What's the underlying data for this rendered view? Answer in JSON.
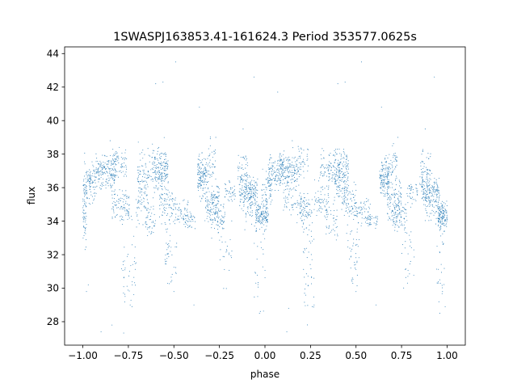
{
  "chart_data": {
    "type": "scatter",
    "title": "1SWASPJ163853.41-161624.3 Period 353577.0625s",
    "xlabel": "phase",
    "ylabel": "flux",
    "xlim": [
      -1.1,
      1.1
    ],
    "ylim": [
      26.6,
      44.4
    ],
    "xticks": [
      -1.0,
      -0.75,
      -0.5,
      -0.25,
      0.0,
      0.25,
      0.5,
      0.75,
      1.0
    ],
    "xtick_labels": [
      "−1.00",
      "−0.75",
      "−0.50",
      "−0.25",
      "0.00",
      "0.25",
      "0.50",
      "0.75",
      "1.00"
    ],
    "yticks": [
      28,
      30,
      32,
      34,
      36,
      38,
      40,
      42,
      44
    ],
    "ytick_labels": [
      "28",
      "30",
      "32",
      "34",
      "36",
      "38",
      "40",
      "42",
      "44"
    ],
    "grid": false,
    "marker_color": "#1f77b4",
    "series": [
      {
        "clusters": [
          {
            "x": [
              -1.0,
              -0.98
            ],
            "y": [
              34.8,
              1.2
            ],
            "n": 70
          },
          {
            "x": [
              -0.985,
              -0.93
            ],
            "y": [
              36.2,
              0.6
            ],
            "n": 90
          },
          {
            "x": [
              -0.93,
              -0.82
            ],
            "y": [
              36.9,
              0.55
            ],
            "n": 170
          },
          {
            "x": [
              -0.84,
              -0.76
            ],
            "y": [
              37.4,
              0.5
            ],
            "n": 70
          },
          {
            "x": [
              -0.84,
              -0.74
            ],
            "y": [
              34.9,
              0.45
            ],
            "n": 90
          },
          {
            "x": [
              -0.79,
              -0.7
            ],
            "y": [
              31.2,
              1.4
            ],
            "n": 45
          },
          {
            "x": [
              -0.71,
              -0.64
            ],
            "y": [
              35.2,
              0.7
            ],
            "n": 60
          },
          {
            "x": [
              -0.7,
              -0.62
            ],
            "y": [
              37.1,
              0.55
            ],
            "n": 70
          },
          {
            "x": [
              -0.66,
              -0.6
            ],
            "y": [
              34.0,
              0.5
            ],
            "n": 40
          },
          {
            "x": [
              -0.62,
              -0.53
            ],
            "y": [
              37.0,
              0.65
            ],
            "n": 180
          },
          {
            "x": [
              -0.58,
              -0.5
            ],
            "y": [
              35.0,
              0.6
            ],
            "n": 80
          },
          {
            "x": [
              -0.55,
              -0.48
            ],
            "y": [
              32.0,
              0.9
            ],
            "n": 40
          },
          {
            "x": [
              -0.5,
              -0.42
            ],
            "y": [
              34.6,
              0.4
            ],
            "n": 50
          },
          {
            "x": [
              -0.45,
              -0.38
            ],
            "y": [
              34.0,
              0.3
            ],
            "n": 40
          },
          {
            "x": [
              -0.37,
              -0.32
            ],
            "y": [
              36.7,
              0.6
            ],
            "n": 130
          },
          {
            "x": [
              -0.33,
              -0.25
            ],
            "y": [
              35.2,
              0.7
            ],
            "n": 120
          },
          {
            "x": [
              -0.3,
              -0.22
            ],
            "y": [
              34.2,
              0.5
            ],
            "n": 70
          },
          {
            "x": [
              -0.32,
              -0.27
            ],
            "y": [
              37.6,
              0.5
            ],
            "n": 40
          },
          {
            "x": [
              -0.25,
              -0.18
            ],
            "y": [
              32.2,
              1.2
            ],
            "n": 25
          },
          {
            "x": [
              -0.22,
              -0.16
            ],
            "y": [
              35.7,
              0.35
            ],
            "n": 40
          },
          {
            "x": [
              -0.15,
              -0.09
            ],
            "y": [
              37.0,
              0.6
            ],
            "n": 60
          },
          {
            "x": [
              -0.14,
              -0.04
            ],
            "y": [
              35.8,
              0.45
            ],
            "n": 150
          },
          {
            "x": [
              -0.12,
              -0.05
            ],
            "y": [
              34.8,
              0.5
            ],
            "n": 45
          },
          {
            "x": [
              -0.05,
              0.02
            ],
            "y": [
              34.3,
              0.4
            ],
            "n": 140
          },
          {
            "x": [
              -0.02,
              0.04
            ],
            "y": [
              36.0,
              0.6
            ],
            "n": 60
          },
          {
            "x": [
              -0.06,
              0.01
            ],
            "y": [
              31.5,
              1.3
            ],
            "n": 25
          },
          {
            "x": [
              0.02,
              0.1
            ],
            "y": [
              36.9,
              0.5
            ],
            "n": 110
          },
          {
            "x": [
              0.08,
              0.18
            ],
            "y": [
              37.1,
              0.55
            ],
            "n": 150
          },
          {
            "x": [
              0.1,
              0.2
            ],
            "y": [
              35.3,
              0.6
            ],
            "n": 60
          },
          {
            "x": [
              0.19,
              0.26
            ],
            "y": [
              34.6,
              0.5
            ],
            "n": 80
          },
          {
            "x": [
              0.21,
              0.27
            ],
            "y": [
              31.3,
              1.4
            ],
            "n": 40
          },
          {
            "x": [
              0.18,
              0.24
            ],
            "y": [
              37.5,
              0.5
            ],
            "n": 40
          },
          {
            "x": [
              0.27,
              0.35
            ],
            "y": [
              35.3,
              0.6
            ],
            "n": 60
          },
          {
            "x": [
              0.3,
              0.38
            ],
            "y": [
              37.2,
              0.5
            ],
            "n": 70
          },
          {
            "x": [
              0.33,
              0.4
            ],
            "y": [
              34.0,
              0.5
            ],
            "n": 40
          },
          {
            "x": [
              0.38,
              0.46
            ],
            "y": [
              36.9,
              0.7
            ],
            "n": 180
          },
          {
            "x": [
              0.42,
              0.5
            ],
            "y": [
              35.0,
              0.6
            ],
            "n": 80
          },
          {
            "x": [
              0.45,
              0.52
            ],
            "y": [
              31.8,
              0.9
            ],
            "n": 40
          },
          {
            "x": [
              0.5,
              0.58
            ],
            "y": [
              34.6,
              0.4
            ],
            "n": 50
          },
          {
            "x": [
              0.55,
              0.62
            ],
            "y": [
              34.0,
              0.3
            ],
            "n": 40
          },
          {
            "x": [
              0.63,
              0.68
            ],
            "y": [
              36.7,
              0.6
            ],
            "n": 130
          },
          {
            "x": [
              0.67,
              0.75
            ],
            "y": [
              35.2,
              0.7
            ],
            "n": 120
          },
          {
            "x": [
              0.7,
              0.78
            ],
            "y": [
              34.2,
              0.5
            ],
            "n": 70
          },
          {
            "x": [
              0.68,
              0.73
            ],
            "y": [
              37.6,
              0.5
            ],
            "n": 40
          },
          {
            "x": [
              0.75,
              0.82
            ],
            "y": [
              32.0,
              1.2
            ],
            "n": 25
          },
          {
            "x": [
              0.78,
              0.84
            ],
            "y": [
              35.7,
              0.35
            ],
            "n": 40
          },
          {
            "x": [
              0.85,
              0.91
            ],
            "y": [
              37.0,
              0.6
            ],
            "n": 60
          },
          {
            "x": [
              0.86,
              0.96
            ],
            "y": [
              35.8,
              0.45
            ],
            "n": 150
          },
          {
            "x": [
              0.88,
              0.95
            ],
            "y": [
              34.8,
              0.5
            ],
            "n": 45
          },
          {
            "x": [
              0.95,
              1.0
            ],
            "y": [
              34.3,
              0.4
            ],
            "n": 140
          },
          {
            "x": [
              0.94,
              0.99
            ],
            "y": [
              31.5,
              1.3
            ],
            "n": 25
          }
        ],
        "outliers": [
          [
            -0.98,
            29.8
          ],
          [
            -0.97,
            30.2
          ],
          [
            -0.9,
            27.4
          ],
          [
            -0.84,
            27.8
          ],
          [
            -0.8,
            38.4
          ],
          [
            -0.74,
            29.0
          ],
          [
            -0.73,
            28.9
          ],
          [
            -0.6,
            42.2
          ],
          [
            -0.56,
            42.3
          ],
          [
            -0.49,
            43.5
          ],
          [
            -0.5,
            29.8
          ],
          [
            -0.39,
            29.0
          ],
          [
            -0.36,
            40.8
          ],
          [
            -0.3,
            38.5
          ],
          [
            -0.27,
            39.0
          ],
          [
            -0.06,
            42.6
          ],
          [
            -0.05,
            30.3
          ],
          [
            -0.04,
            29.5
          ],
          [
            -0.03,
            28.5
          ],
          [
            0.07,
            41.7
          ],
          [
            0.13,
            28.8
          ],
          [
            0.12,
            27.4
          ],
          [
            0.2,
            38.3
          ],
          [
            0.26,
            28.9
          ],
          [
            0.27,
            29.0
          ],
          [
            0.4,
            42.2
          ],
          [
            0.44,
            42.3
          ],
          [
            0.53,
            43.5
          ],
          [
            0.5,
            29.8
          ],
          [
            0.61,
            29.0
          ],
          [
            0.64,
            40.8
          ],
          [
            0.7,
            38.5
          ],
          [
            0.73,
            39.0
          ],
          [
            0.93,
            42.6
          ],
          [
            0.95,
            30.3
          ],
          [
            0.96,
            28.5
          ],
          [
            0.88,
            39.5
          ],
          [
            -0.12,
            39.5
          ],
          [
            0.15,
            38.8
          ],
          [
            -0.85,
            38.8
          ]
        ]
      }
    ]
  }
}
